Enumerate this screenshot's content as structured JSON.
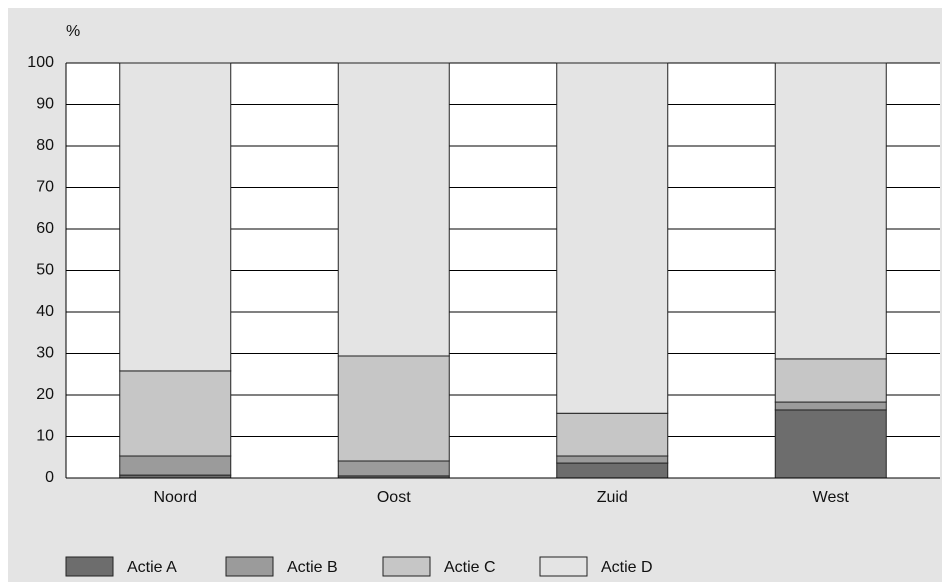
{
  "chart_data": {
    "type": "stacked-bar",
    "y_label": "%",
    "categories": [
      "Noord",
      "Oost",
      "Zuid",
      "West"
    ],
    "series": [
      {
        "name": "Actie A",
        "color": "#6d6d6d",
        "values": [
          0.7,
          0.5,
          3.6,
          16.4
        ]
      },
      {
        "name": "Actie B",
        "color": "#9b9b9b",
        "values": [
          4.6,
          3.6,
          1.7,
          1.9
        ]
      },
      {
        "name": "Actie C",
        "color": "#c6c6c6",
        "values": [
          20.5,
          25.3,
          10.3,
          10.4
        ]
      },
      {
        "name": "Actie D",
        "color": "#e4e4e4",
        "values": [
          74.2,
          70.6,
          84.4,
          71.3
        ]
      }
    ],
    "ylim": [
      0,
      100
    ],
    "yticks": [
      0,
      10,
      20,
      30,
      40,
      50,
      60,
      70,
      80,
      90,
      100
    ],
    "grid": true
  }
}
